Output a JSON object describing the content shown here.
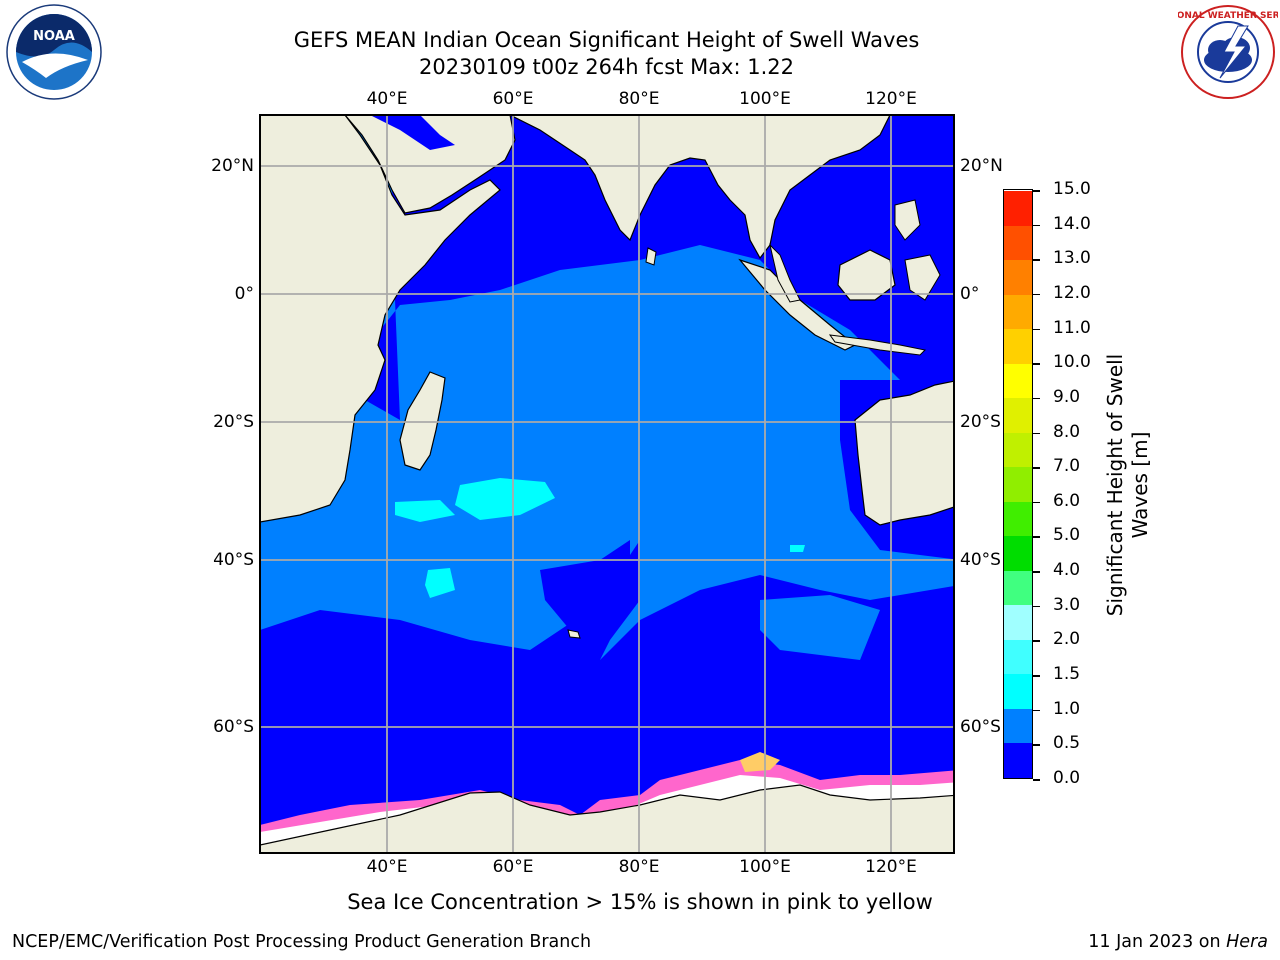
{
  "title": {
    "line1": "GEFS MEAN Indian Ocean Significant Height of Swell Waves",
    "line2": "20230109 t00z 264h fcst   Max: 1.22"
  },
  "map": {
    "lon_ticks": [
      "40°E",
      "60°E",
      "80°E",
      "100°E",
      "120°E"
    ],
    "lat_ticks_left": [
      "20°N",
      "0°",
      "20°S",
      "40°S",
      "60°S"
    ],
    "lat_ticks_right": [
      "20°N",
      "0°",
      "20°S",
      "40°S",
      "60°S"
    ],
    "colors": {
      "land": "#eeeedd",
      "ocean_low": "#0000ff",
      "ocean_mid": "#0080ff",
      "ocean_high": "#00ffff",
      "ice_pink": "#ff66cc",
      "ice_yellow": "#ffee66",
      "grid": "#aaaaaa"
    }
  },
  "colorbar": {
    "label_line1": "Significant Height of Swell",
    "label_line2": "Waves [m]",
    "levels": [
      "0.0",
      "0.5",
      "1.0",
      "1.5",
      "2.0",
      "3.0",
      "4.0",
      "5.0",
      "6.0",
      "7.0",
      "8.0",
      "9.0",
      "10.0",
      "11.0",
      "12.0",
      "13.0",
      "14.0",
      "15.0"
    ],
    "colors": [
      "#0000ff",
      "#0080ff",
      "#00ffff",
      "#40ffff",
      "#a0ffff",
      "#40ff80",
      "#00dd00",
      "#40ee00",
      "#90ee00",
      "#c0f000",
      "#e0f000",
      "#ffff00",
      "#ffd000",
      "#ffaa00",
      "#ff8000",
      "#ff5000",
      "#ff2000"
    ]
  },
  "caption": "Sea Ice Concentration > 15% is shown in pink to yellow",
  "footer": {
    "left": "NCEP/EMC/Verification Post Processing Product Generation Branch",
    "right_prefix": "11 Jan 2023 on ",
    "right_host": "Hera"
  },
  "logos": {
    "left_text": "NOAA",
    "right_text": "NATIONAL WEATHER SERVICE"
  }
}
